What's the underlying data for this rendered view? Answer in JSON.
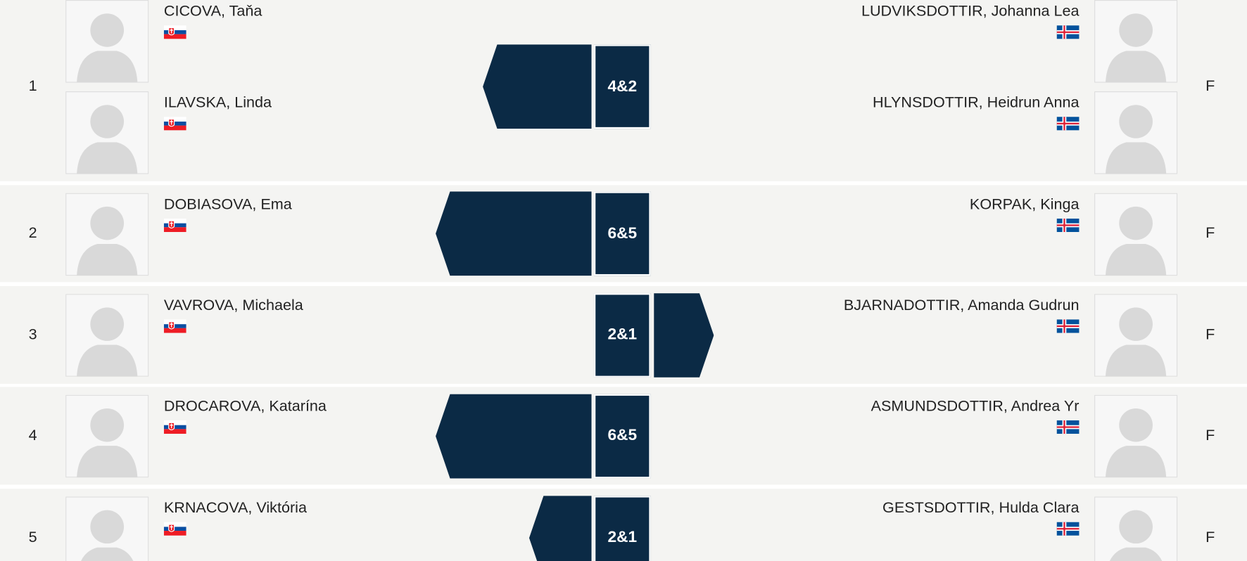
{
  "matches": [
    {
      "number": 1,
      "left_players": [
        "CICOVA, Taňa",
        "ILAVSKA, Linda"
      ],
      "score": "4&2",
      "winner": "left",
      "right_players": [
        "LUDVIKSDOTTIR, Johanna Lea",
        "HLYNSDOTTIR, Heidrun Anna"
      ],
      "status": "F"
    },
    {
      "number": 2,
      "left_players": [
        "DOBIASOVA, Ema"
      ],
      "score": "6&5",
      "winner": "left",
      "right_players": [
        "KORPAK, Kinga"
      ],
      "status": "F"
    },
    {
      "number": 3,
      "left_players": [
        "VAVROVA, Michaela"
      ],
      "score": "2&1",
      "winner": "right",
      "right_players": [
        "BJARNADOTTIR, Amanda Gudrun"
      ],
      "status": "F"
    },
    {
      "number": 4,
      "left_players": [
        "DROCAROVA, Katarína"
      ],
      "score": "6&5",
      "winner": "left",
      "right_players": [
        "ASMUNDSDOTTIR, Andrea Yr"
      ],
      "status": "F"
    },
    {
      "number": 5,
      "left_players": [
        "KRNACOVA, Viktória"
      ],
      "score": "2&1",
      "winner": "left",
      "right_players": [
        "GESTSDOTTIR, Hulda Clara"
      ],
      "status": "F"
    }
  ]
}
